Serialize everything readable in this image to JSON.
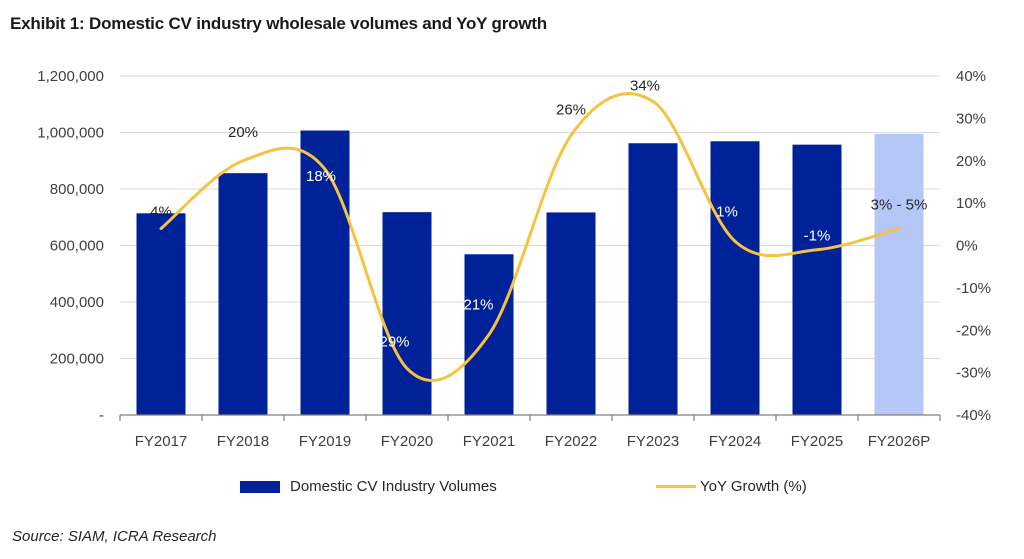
{
  "chart_data": {
    "type": "bar+line",
    "title": "Exhibit 1: Domestic CV industry wholesale volumes and YoY growth",
    "source": "Source: SIAM, ICRA Research",
    "categories": [
      "FY2017",
      "FY2018",
      "FY2019",
      "FY2020",
      "FY2021",
      "FY2022",
      "FY2023",
      "FY2024",
      "FY2025",
      "FY2026P"
    ],
    "series": [
      {
        "name": "Domestic CV Industry Volumes",
        "type": "bar",
        "axis": "left",
        "color": "#002299",
        "projected_color": "#B4C7F7",
        "projected_index": 9,
        "values": [
          714000,
          856000,
          1007000,
          718000,
          569000,
          717000,
          962000,
          969000,
          957000,
          995000
        ]
      },
      {
        "name": "YoY Growth (%)",
        "type": "line",
        "axis": "right",
        "color": "#F5C242",
        "smooth": true,
        "values": [
          4,
          20,
          18,
          -29,
          -21,
          26,
          34,
          1,
          -1,
          4
        ],
        "labels": [
          "4%",
          "20%",
          "18%",
          "-29%",
          "-21%",
          "26%",
          "34%",
          "1%",
          "-1%",
          "3% - 5%"
        ]
      }
    ],
    "y_left": {
      "range": [
        0,
        1200000
      ],
      "ticks": [
        0,
        200000,
        400000,
        600000,
        800000,
        1000000,
        1200000
      ],
      "tick_labels": [
        "-",
        "200,000",
        "400,000",
        "600,000",
        "800,000",
        "1,000,000",
        "1,200,000"
      ]
    },
    "y_right": {
      "range": [
        -40,
        40
      ],
      "ticks": [
        -40,
        -30,
        -20,
        -10,
        0,
        10,
        20,
        30,
        40
      ],
      "tick_labels": [
        "-40%",
        "-30%",
        "-20%",
        "-10%",
        "0%",
        "10%",
        "20%",
        "30%",
        "40%"
      ]
    },
    "grid": true,
    "legend": {
      "position": "bottom",
      "items": [
        {
          "label": "Domestic CV Industry Volumes",
          "kind": "bar"
        },
        {
          "label": "YoY Growth (%)",
          "kind": "line"
        }
      ]
    }
  }
}
